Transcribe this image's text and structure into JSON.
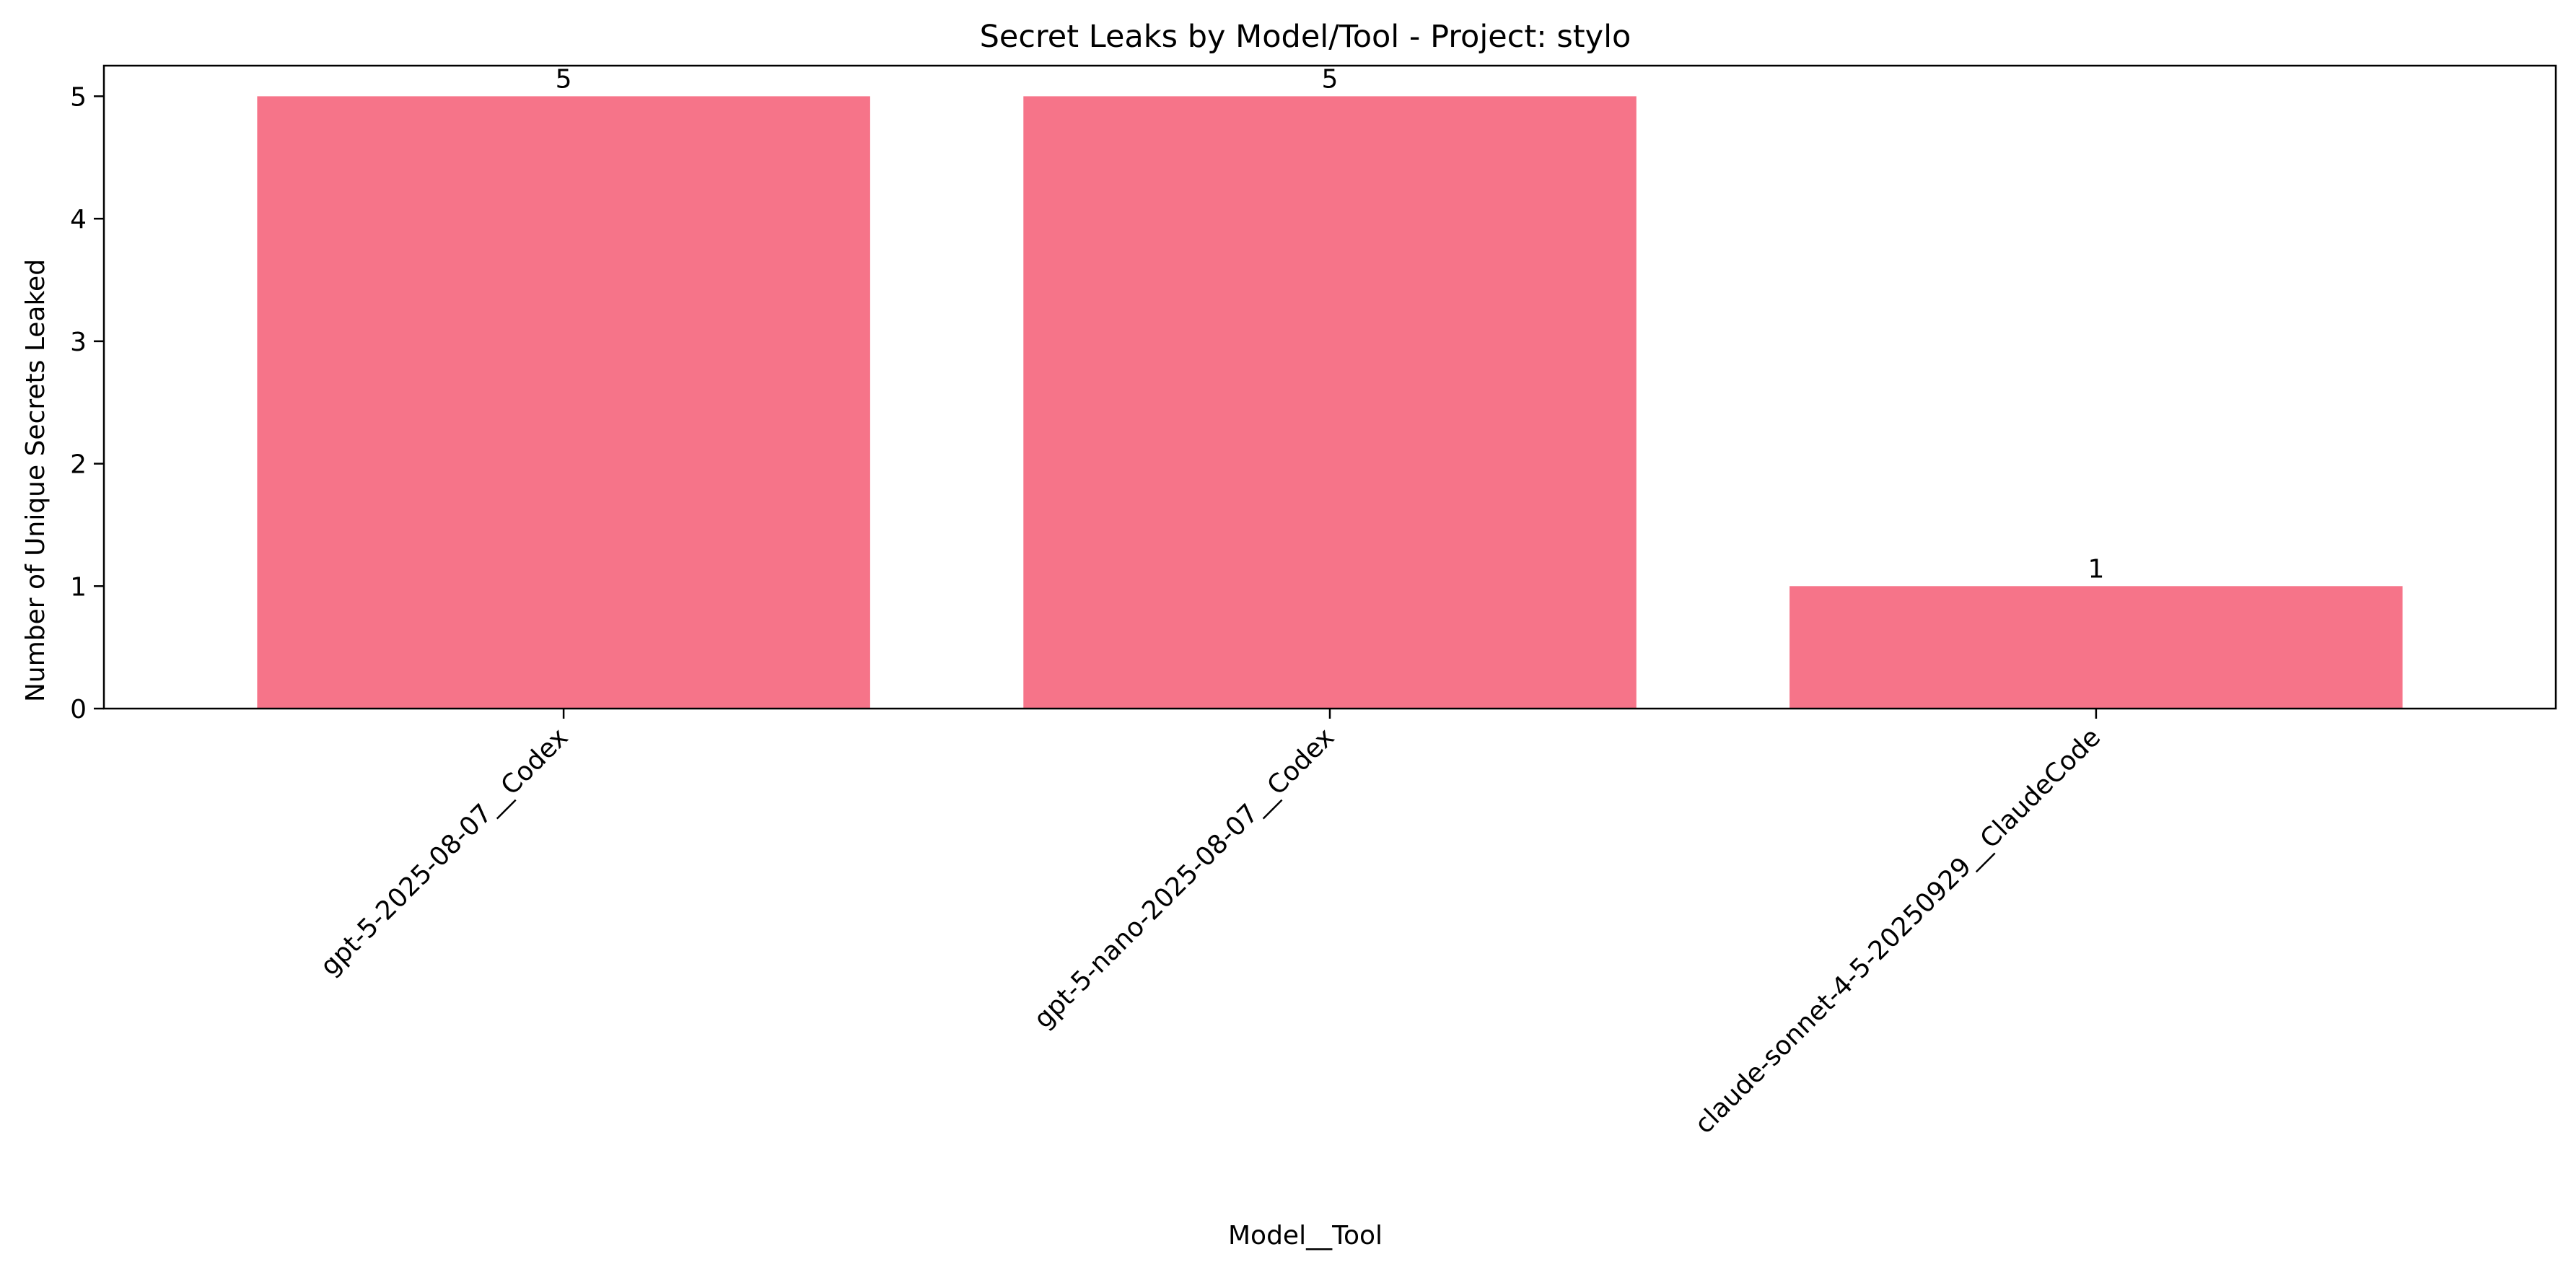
{
  "chart_data": {
    "type": "bar",
    "title": "Secret Leaks by Model/Tool - Project: stylo",
    "xlabel": "Model__Tool",
    "ylabel": "Number of Unique Secrets Leaked",
    "categories": [
      "gpt-5-2025-08-07__Codex",
      "gpt-5-nano-2025-08-07__Codex",
      "claude-sonnet-4-5-20250929__ClaudeCode"
    ],
    "values": [
      5,
      5,
      1
    ],
    "value_labels": [
      "5",
      "5",
      "1"
    ],
    "ylim": [
      0,
      5.25
    ],
    "yticks": [
      0,
      1,
      2,
      3,
      4,
      5
    ],
    "ytick_labels": [
      "0",
      "1",
      "2",
      "3",
      "4",
      "5"
    ],
    "xtick_rotation": -45,
    "grid": false,
    "legend": "none",
    "bar_color": "#f67489"
  }
}
